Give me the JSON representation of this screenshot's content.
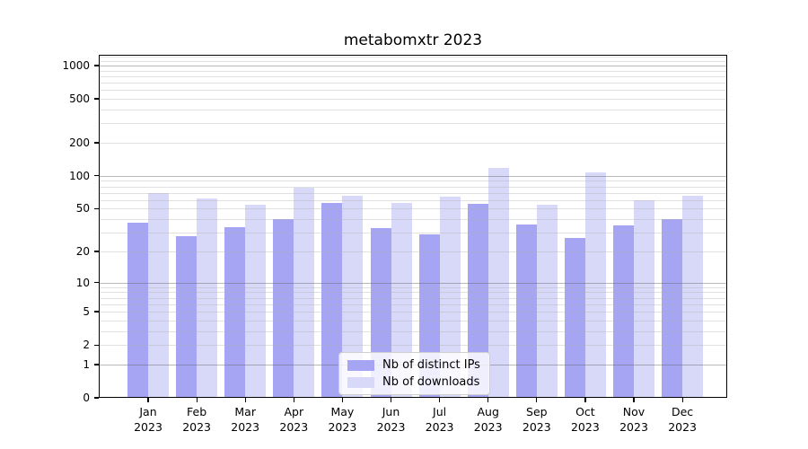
{
  "title": "metabomxtr 2023",
  "chart_data": {
    "type": "bar",
    "title": "metabomxtr 2023",
    "categories": [
      "Jan 2023",
      "Feb 2023",
      "Mar 2023",
      "Apr 2023",
      "May 2023",
      "Jun 2023",
      "Jul 2023",
      "Aug 2023",
      "Sep 2023",
      "Oct 2023",
      "Nov 2023",
      "Dec 2023"
    ],
    "series": [
      {
        "name": "Nb of distinct IPs",
        "color": "#a5a5f3",
        "values": [
          37,
          28,
          34,
          40,
          57,
          33,
          29,
          55,
          36,
          27,
          35,
          40
        ]
      },
      {
        "name": "Nb of downloads",
        "color": "#d8d8f9",
        "values": [
          69,
          62,
          54,
          78,
          66,
          57,
          64,
          118,
          54,
          108,
          60,
          66
        ]
      }
    ],
    "xlabel": "",
    "ylabel": "",
    "yscale": "log1p",
    "yticks": [
      0,
      1,
      2,
      5,
      10,
      20,
      50,
      100,
      200,
      500,
      1000
    ],
    "ylim": [
      0,
      1250
    ],
    "grid": "horizontal major+minor, drawn over bars",
    "legend_position": "bottom-center inside plot"
  }
}
